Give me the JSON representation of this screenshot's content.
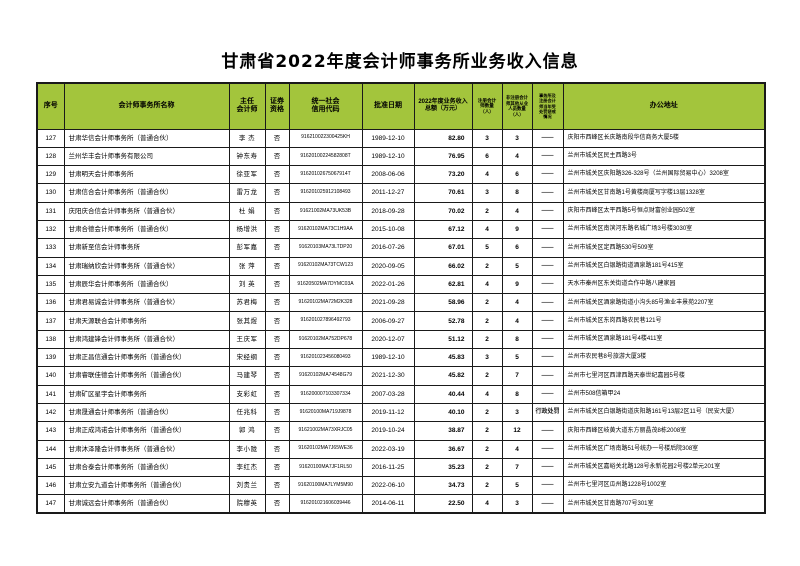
{
  "page": {
    "title": "甘肃省2022年度会计师事务所业务收入信息"
  },
  "colors": {
    "header_green": "#a3c53c",
    "border": "#1a1a1a"
  },
  "table": {
    "columns": [
      "序号",
      "会计师事务所名称",
      "主任\n会计师",
      "证券\n资格",
      "统一社会\n信用代码",
      "批准日期",
      "2022年度业务收入\n总额（万元）",
      "注册会计\n师数量\n（人）",
      "非注册会计\n师其他从业\n人员数量\n（人）",
      "事务所及\n注册会计\n师当年受\n处罚惩戒\n情况",
      "办公地址"
    ],
    "rows": [
      [
        "127",
        "甘肃华信会计师事务所（普通合伙）",
        "李 杰",
        "否",
        "916210022300425KH",
        "1989-12-10",
        "82.80",
        "3",
        "3",
        "——",
        "庆阳市西峰区长庆路南段华信商务大厦5楼"
      ],
      [
        "128",
        "兰州华丰会计师事务有限公司",
        "钟东寿",
        "否",
        "91620100224582808T",
        "1989-12-10",
        "76.95",
        "6",
        "4",
        "——",
        "兰州市城关区民主西路3号"
      ],
      [
        "129",
        "甘肃明天会计师事务所",
        "徐亚军",
        "否",
        "91620102675067914T",
        "2008-06-06",
        "73.20",
        "4",
        "6",
        "——",
        "兰州市城关区庆阳路326-328号（兰州国际贸易中心）3208室"
      ],
      [
        "130",
        "甘肃信合会计师事务所（普通合伙）",
        "雷万龙",
        "否",
        "916201025912108493",
        "2011-12-27",
        "70.61",
        "3",
        "8",
        "——",
        "兰州市城关区甘南路1号黄楼商厦写字楼13层1328室"
      ],
      [
        "131",
        "庆阳庆合信会计师事务所（普通合伙）",
        "杜 娟",
        "否",
        "91621002MA73UK53B",
        "2018-09-28",
        "70.02",
        "2",
        "4",
        "——",
        "庆阳市西峰区太平西路5号恒点财富创业园502室"
      ],
      [
        "132",
        "甘肃合德会计师事务所（普通合伙）",
        "杨增洪",
        "否",
        "91620102MA73C1H9AA",
        "2015-10-08",
        "67.12",
        "4",
        "9",
        "——",
        "兰州市城关区南滨河东路名城广场3号楼3030室"
      ],
      [
        "133",
        "甘肃新至信会计师事务所",
        "彭军嘉",
        "否",
        "91620103MA73LTDP20",
        "2016-07-26",
        "67.01",
        "5",
        "6",
        "——",
        "兰州市城关区定西路530号509室"
      ],
      [
        "134",
        "甘肃瑞纳欣会计师事务所（普通合伙）",
        "张 萍",
        "否",
        "91620102MA73TCW123",
        "2020-09-05",
        "66.02",
        "2",
        "5",
        "——",
        "兰州市城关区白银路街道酒泉路181号415室"
      ],
      [
        "135",
        "甘肃辰华会计师事务所（普通合伙）",
        "刘 英",
        "否",
        "91620502MA7DYMC03A",
        "2022-01-26",
        "62.81",
        "4",
        "9",
        "——",
        "天水市秦州区东关街道合作中路八建家园"
      ],
      [
        "136",
        "甘肃君易诚会计师事务所（普通合伙）",
        "苏君梅",
        "否",
        "91620102MA72M2K328",
        "2021-09-28",
        "58.96",
        "2",
        "4",
        "——",
        "兰州市城关区酒泉路街道小沟头85号渔业丰景苑2207室"
      ],
      [
        "137",
        "甘肃天源联合会计师事务所",
        "张其煜",
        "否",
        "916201027896492793",
        "2006-09-27",
        "52.78",
        "2",
        "4",
        "——",
        "兰州市城关区东岗西路农民巷121号"
      ],
      [
        "138",
        "甘肃鸿建锋会计师事务所（普通合伙）",
        "王庆军",
        "否",
        "91620102MA752DP678",
        "2020-12-07",
        "51.12",
        "2",
        "8",
        "——",
        "兰州市城关区酒泉路181号4楼411室"
      ],
      [
        "139",
        "甘肃正昌信通会计师事务所（普通合伙）",
        "宋经纲",
        "否",
        "916201023456080493",
        "1989-12-10",
        "45.83",
        "3",
        "5",
        "——",
        "兰州市农民巷8号旅游大厦3楼"
      ],
      [
        "140",
        "甘肃睿联佳德会计师事务所（普通合伙）",
        "马建琴",
        "否",
        "91620102MA74548G79",
        "2021-12-30",
        "45.82",
        "2",
        "7",
        "——",
        "兰州市七里河区西津西路天泰世纪嘉园5号楼"
      ],
      [
        "141",
        "甘肃矿区星宇会计师事务所",
        "支彩虹",
        "否",
        "916200007103307334",
        "2007-03-28",
        "40.44",
        "4",
        "8",
        "——",
        "兰州市508信箱甲24"
      ],
      [
        "142",
        "甘肃晟通会计师事务所（普通合伙）",
        "任兆科",
        "否",
        "91620100MA719J9878",
        "2019-11-12",
        "40.10",
        "2",
        "3",
        "行政处罚",
        "兰州市城关区白银路街道庆阳路161号13层2区11号（民安大厦）"
      ],
      [
        "143",
        "甘肃正成鸿诺会计师事务所（普通合伙）",
        "郭 鸿",
        "否",
        "91621002MA73XRJC05",
        "2019-10-24",
        "38.87",
        "2",
        "12",
        "——",
        "庆阳市西峰区岐黄大道东方丽晶茂8栋2008室"
      ],
      [
        "144",
        "甘肃沐泽隆会计师事务所（普通合伙）",
        "李小陇",
        "否",
        "91620102MA7J65WE36",
        "2022-03-19",
        "36.67",
        "2",
        "4",
        "——",
        "兰州市城关区广场南路51号统办一号楼后院308室"
      ],
      [
        "145",
        "甘肃合泰会计师事务所（普通合伙）",
        "李红杰",
        "否",
        "91620100MA7JF1RL50",
        "2016-11-25",
        "35.23",
        "2",
        "7",
        "——",
        "兰州市城关区嘉峪关北路128号永新花园2号楼2单元201室"
      ],
      [
        "146",
        "甘肃立安九道会计师事务所（普通合伙）",
        "刘贵兰",
        "否",
        "91620100MA7LYM5M90",
        "2022-06-10",
        "34.73",
        "2",
        "5",
        "——",
        "兰州市七里河区瓜州路1228号1002室"
      ],
      [
        "147",
        "甘肃诚远会计师事务所（普通合伙）",
        "院穆英",
        "否",
        "916201021606039446",
        "2014-06-11",
        "22.50",
        "4",
        "3",
        "——",
        "兰州市城关区甘南路707号301室"
      ]
    ]
  }
}
